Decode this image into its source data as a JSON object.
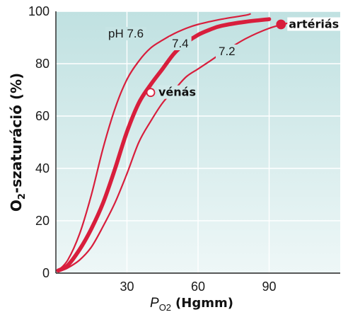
{
  "chart_data": {
    "type": "line",
    "ylabel_main": "O",
    "ylabel_sub": "2",
    "ylabel_rest": "-szaturáció (%)",
    "xlabel_main": "P",
    "xlabel_sub": "O2",
    "xlabel_unit": "(Hgmm)",
    "xlim": [
      0,
      120
    ],
    "ylim": [
      0,
      100
    ],
    "x_ticks": [
      30,
      60,
      90
    ],
    "y_ticks": [
      0,
      20,
      40,
      60,
      80,
      100
    ],
    "grid": true,
    "series": [
      {
        "name": "pH 7.6",
        "x": [
          1,
          5,
          10,
          15,
          20,
          25,
          30,
          35,
          40,
          45,
          50,
          55,
          60,
          70,
          80,
          82
        ],
        "y": [
          1,
          5,
          15,
          30,
          48,
          63,
          74,
          81,
          86,
          89,
          91.5,
          93.5,
          95,
          97,
          98.5,
          99
        ]
      },
      {
        "name": "7.4",
        "x": [
          1,
          5,
          10,
          15,
          20,
          25,
          30,
          35,
          40,
          45,
          50,
          55,
          60,
          65,
          70,
          80,
          90
        ],
        "y": [
          1,
          3,
          9,
          17,
          27,
          40,
          54,
          65,
          72,
          78,
          84,
          88,
          91,
          93,
          94.5,
          96,
          97
        ]
      },
      {
        "name": "7.2",
        "x": [
          1,
          5,
          10,
          15,
          20,
          25,
          30,
          35,
          40,
          45,
          50,
          55,
          60,
          65,
          70,
          80,
          90,
          98
        ],
        "y": [
          0.5,
          2,
          5,
          10,
          18,
          27,
          38,
          50,
          58,
          65,
          70,
          75,
          78,
          81,
          84,
          89.5,
          93.5,
          95.5
        ]
      }
    ],
    "points": [
      {
        "label": "artériás",
        "x": 95,
        "y": 95,
        "filled": true
      },
      {
        "label": "vénás",
        "x": 40,
        "y": 69,
        "filled": false
      }
    ],
    "colors": {
      "curve": "#d81e3c",
      "background_top": "#c0e1e1",
      "background_bottom": "#eef7f7",
      "grid": "#ffffff"
    }
  }
}
